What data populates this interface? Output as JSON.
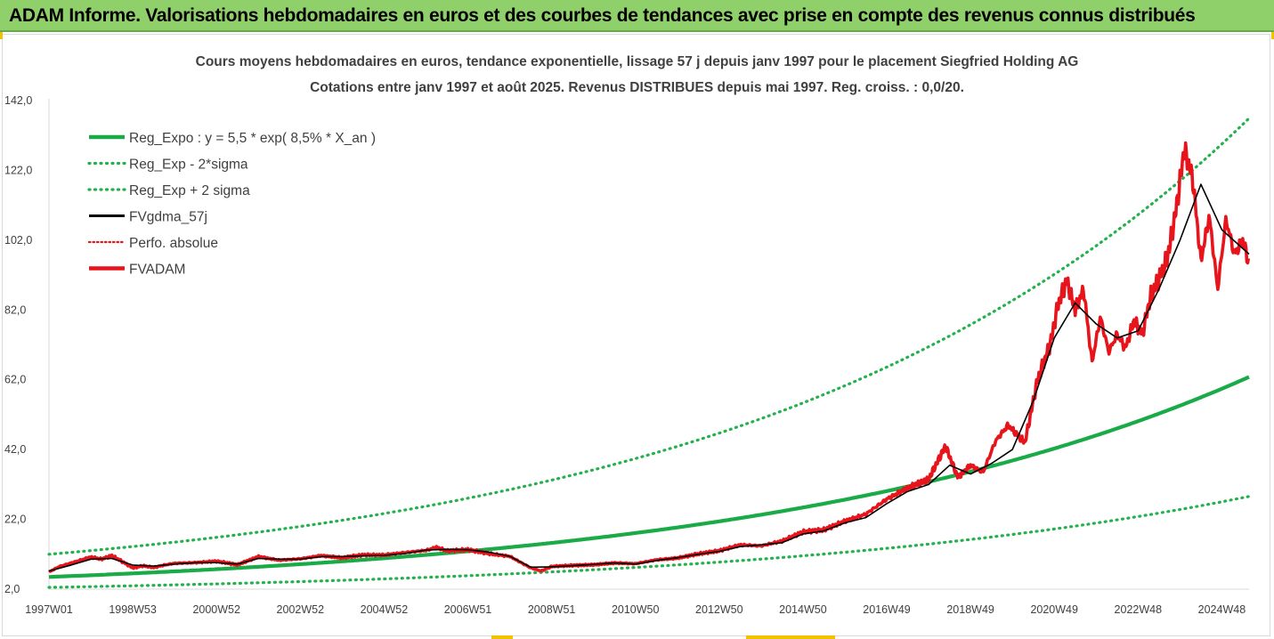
{
  "banner": {
    "title": "ADAM Informe. Valorisations hebdomadaires en euros et des courbes de tendances avec prise en compte des revenus connus distribués"
  },
  "colors": {
    "banner": "#8fd06a",
    "trend": "#1aab48",
    "trend_dotted": "#22b14c",
    "smoothed": "#000000",
    "price": "#e8141c",
    "perf": "#e8141c"
  },
  "chart_data": {
    "type": "line",
    "title": "Cours moyens hebdomadaires en euros, tendance exponentielle, lissage 57 j depuis janv 1997 pour le placement Siegfried Holding AG",
    "subtitle": "Cotations entre janv 1997 et août 2025. Revenus DISTRIBUES depuis mai 1997. Reg. croiss. : 0,0/20.",
    "x_tick_labels": [
      "1997W01",
      "1998W53",
      "2000W52",
      "2002W52",
      "2004W52",
      "2006W51",
      "2008W51",
      "2010W50",
      "2012W50",
      "2014W50",
      "2016W49",
      "2018W49",
      "2020W49",
      "2022W48",
      "2024W48"
    ],
    "x_tick_years": [
      1997.0,
      1999.0,
      2001.0,
      2003.0,
      2005.0,
      2007.0,
      2009.0,
      2011.0,
      2013.0,
      2015.0,
      2017.0,
      2019.0,
      2021.0,
      2023.0,
      2025.0
    ],
    "xlim": [
      1997.0,
      2025.65
    ],
    "y_tick_labels": [
      "2,0",
      "22,0",
      "42,0",
      "62,0",
      "82,0",
      "102,0",
      "122,0",
      "142,0"
    ],
    "y_ticks": [
      2,
      22,
      42,
      62,
      82,
      102,
      122,
      142
    ],
    "ylim": [
      2,
      142
    ],
    "legend_position": "top-left",
    "legend": [
      {
        "label": "Reg_Expo : y = 5,5 * exp( 8,5% *  X_an )",
        "style": "solid-thick",
        "color": "#1aab48"
      },
      {
        "label": "Reg_Exp - 2*sigma",
        "style": "dotted",
        "color": "#22b14c"
      },
      {
        "label": "Reg_Exp + 2 sigma",
        "style": "dotted",
        "color": "#22b14c"
      },
      {
        "label": "FVgdma_57j",
        "style": "solid",
        "color": "#000000"
      },
      {
        "label": "Perfo. absolue",
        "style": "dotted-thin",
        "color": "#e8141c"
      },
      {
        "label": "FVADAM",
        "style": "solid-thick",
        "color": "#e8141c"
      }
    ],
    "trend": {
      "a": 5.5,
      "rate": 0.085,
      "start_year": 1997.0
    },
    "series": [
      {
        "name": "Reg_Expo : y = 5,5 * exp( 8,5% *  X_an )",
        "x": [
          1997.0,
          1999.0,
          2001.0,
          2003.0,
          2005.0,
          2007.0,
          2009.0,
          2011.0,
          2013.0,
          2015.0,
          2017.0,
          2019.0,
          2021.0,
          2023.0,
          2025.0,
          2025.65
        ],
        "values": [
          5.5,
          6.5,
          7.7,
          9.1,
          10.8,
          12.8,
          15.2,
          18.0,
          21.4,
          25.3,
          30.1,
          35.6,
          42.1,
          49.9,
          59.0,
          62.4
        ]
      },
      {
        "name": "Reg_Exp - 2*sigma",
        "x": [
          1997.0,
          1999.0,
          2001.0,
          2003.0,
          2005.0,
          2007.0,
          2009.0,
          2011.0,
          2013.0,
          2015.0,
          2017.0,
          2019.0,
          2021.0,
          2023.0,
          2025.0,
          2025.65
        ],
        "values": [
          2.5,
          3.0,
          3.5,
          4.2,
          4.9,
          5.9,
          6.9,
          8.2,
          9.8,
          11.6,
          13.7,
          16.3,
          19.3,
          22.8,
          27.0,
          28.5
        ]
      },
      {
        "name": "Reg_Exp + 2 sigma",
        "x": [
          1997.0,
          1999.0,
          2001.0,
          2003.0,
          2005.0,
          2007.0,
          2009.0,
          2011.0,
          2013.0,
          2015.0,
          2017.0,
          2019.0,
          2021.0,
          2023.0,
          2025.0,
          2025.65
        ],
        "values": [
          12.0,
          14.2,
          16.8,
          19.9,
          23.6,
          27.9,
          33.1,
          39.2,
          46.4,
          55.0,
          65.1,
          77.1,
          91.3,
          108.1,
          128.1,
          135.5
        ]
      },
      {
        "name": "FVgdma_57j",
        "x": [
          1997.0,
          1997.5,
          1998.0,
          1998.5,
          1999.0,
          1999.5,
          2000.0,
          2000.5,
          2001.0,
          2001.5,
          2002.0,
          2002.5,
          2003.0,
          2003.5,
          2004.0,
          2004.5,
          2005.0,
          2005.5,
          2006.0,
          2006.5,
          2007.0,
          2007.5,
          2008.0,
          2008.5,
          2009.0,
          2009.5,
          2010.0,
          2010.5,
          2011.0,
          2011.5,
          2012.0,
          2012.5,
          2013.0,
          2013.5,
          2014.0,
          2014.5,
          2015.0,
          2015.5,
          2016.0,
          2016.5,
          2017.0,
          2017.5,
          2018.0,
          2018.5,
          2019.0,
          2019.5,
          2020.0,
          2020.5,
          2021.0,
          2021.5,
          2022.0,
          2022.5,
          2023.0,
          2023.5,
          2024.0,
          2024.5,
          2025.0,
          2025.65
        ],
        "values": [
          7.2,
          8.8,
          10.6,
          10.8,
          8.9,
          8.6,
          9.2,
          9.6,
          9.6,
          9.2,
          10.8,
          10.6,
          10.6,
          11.3,
          11.3,
          11.6,
          11.7,
          12.2,
          13.2,
          13.4,
          13.3,
          12.6,
          11.4,
          8.3,
          8.4,
          8.7,
          9.1,
          9.5,
          9.2,
          10.2,
          11.0,
          12.0,
          12.8,
          14.2,
          14.7,
          15.3,
          17.8,
          18.7,
          21.0,
          22.5,
          26.5,
          30.0,
          32.0,
          37.5,
          35.0,
          38.0,
          42.0,
          56.0,
          74.0,
          84.0,
          78.0,
          74.0,
          76.0,
          88.0,
          102.0,
          118.0,
          105.0,
          98.0
        ]
      },
      {
        "name": "FVADAM",
        "x": [
          1997.0,
          1997.25,
          1997.5,
          1997.75,
          1998.0,
          1998.25,
          1998.5,
          1998.75,
          1999.0,
          1999.25,
          1999.5,
          1999.75,
          2000.0,
          2000.5,
          2001.0,
          2001.5,
          2002.0,
          2002.5,
          2003.0,
          2003.5,
          2004.0,
          2004.5,
          2005.0,
          2005.5,
          2006.0,
          2006.25,
          2006.5,
          2007.0,
          2007.5,
          2008.0,
          2008.5,
          2008.75,
          2009.0,
          2009.5,
          2010.0,
          2010.5,
          2011.0,
          2011.5,
          2012.0,
          2012.5,
          2013.0,
          2013.5,
          2014.0,
          2014.5,
          2015.0,
          2015.5,
          2016.0,
          2016.5,
          2017.0,
          2017.5,
          2018.0,
          2018.4,
          2018.7,
          2019.0,
          2019.3,
          2019.6,
          2019.9,
          2020.3,
          2020.6,
          2020.9,
          2021.1,
          2021.3,
          2021.5,
          2021.7,
          2021.9,
          2022.1,
          2022.3,
          2022.5,
          2022.7,
          2022.9,
          2023.1,
          2023.3,
          2023.5,
          2023.7,
          2023.9,
          2024.1,
          2024.3,
          2024.5,
          2024.7,
          2024.9,
          2025.1,
          2025.3,
          2025.5,
          2025.65
        ],
        "values": [
          6.9,
          8.5,
          9.4,
          10.3,
          11.2,
          10.6,
          11.6,
          9.9,
          8.1,
          8.7,
          8.2,
          8.9,
          9.4,
          9.6,
          10.0,
          9.0,
          11.3,
          10.3,
          10.7,
          11.6,
          11.0,
          11.8,
          11.8,
          12.5,
          13.1,
          14.0,
          13.0,
          13.3,
          12.2,
          11.4,
          8.1,
          7.2,
          8.5,
          8.8,
          9.0,
          9.5,
          9.3,
          10.4,
          10.9,
          12.1,
          13.0,
          14.7,
          14.4,
          15.8,
          18.4,
          19.0,
          21.5,
          23.5,
          27.8,
          31.0,
          33.5,
          43.0,
          34.0,
          37.5,
          35.5,
          44.5,
          49.0,
          44.0,
          62.0,
          72.0,
          84.0,
          90.5,
          82.0,
          88.0,
          67.0,
          80.0,
          70.0,
          75.0,
          71.0,
          79.0,
          75.0,
          86.0,
          91.0,
          97.0,
          110.0,
          128.0,
          120.0,
          96.0,
          109.0,
          88.0,
          108.0,
          98.0,
          102.0,
          95.0
        ]
      }
    ]
  }
}
